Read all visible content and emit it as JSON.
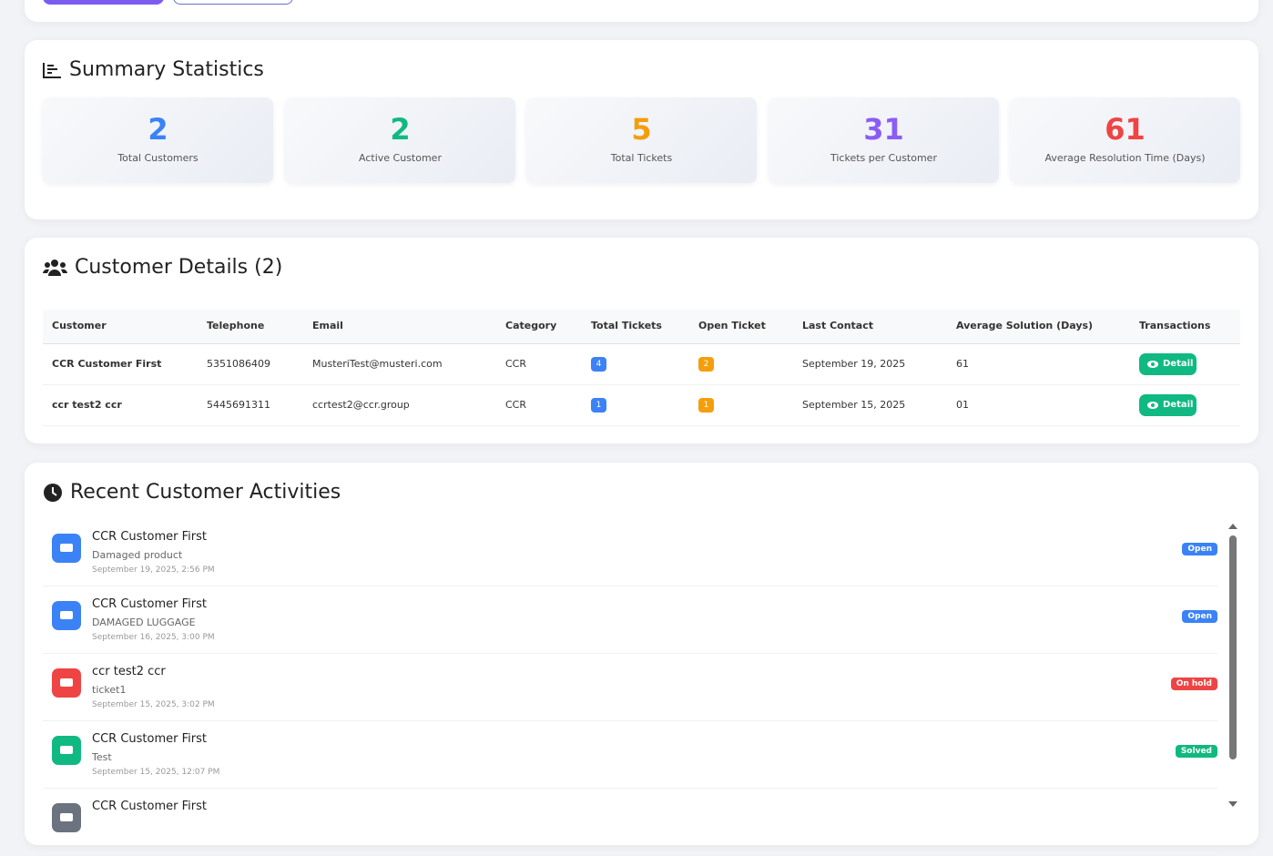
{
  "summary": {
    "title": "Summary Statistics",
    "stats": [
      {
        "value": 2,
        "label": "Total Customers",
        "color": "#3b82f6"
      },
      {
        "value": 2,
        "label": "Active Customer",
        "color": "#10b981"
      },
      {
        "value": 5,
        "label": "Total Tickets",
        "color": "#f59e0b"
      },
      {
        "value": 31,
        "label": "Tickets per Customer",
        "color": "#8b5cf6"
      },
      {
        "value": 61,
        "label": "Average Resolution Time (Days)",
        "color": "#ef4444"
      }
    ]
  },
  "customers": {
    "title": "Customer Details (2)",
    "columns": [
      "Customer",
      "Telephone",
      "Email",
      "Category",
      "Total Tickets",
      "Open Ticket",
      "Last Contact",
      "Average Solution (Days)",
      "Transactions"
    ],
    "rows": [
      [
        "CCR Customer First",
        "5351086409",
        "MusteriTest@musteri.com",
        "CCR",
        4,
        2,
        "September 19, 2025",
        "61",
        "Detail"
      ],
      [
        "ccr test2 ccr",
        "5445691311",
        "ccrtest2@ccr.group",
        "CCR",
        1,
        1,
        "September 15, 2025",
        "01",
        "Detail"
      ]
    ]
  },
  "activities": {
    "title": "Recent Customer Activities",
    "items": [
      {
        "name": "CCR Customer First",
        "subject": "Damaged product",
        "date": "September 19, 2025, 2:56 PM",
        "status": "Open",
        "color": "#3b82f6"
      },
      {
        "name": "CCR Customer First",
        "subject": "DAMAGED LUGGAGE",
        "date": "September 16, 2025, 3:00 PM",
        "status": "Open",
        "color": "#3b82f6"
      },
      {
        "name": "ccr test2 ccr",
        "subject": "ticket1",
        "date": "September 15, 2025, 3:02 PM",
        "status": "On hold",
        "color": "#ef4444"
      },
      {
        "name": "CCR Customer First",
        "subject": "Test",
        "date": "September 15, 2025, 12:07 PM",
        "status": "Solved",
        "color": "#10b981"
      },
      {
        "name": "CCR Customer First",
        "color": "#6b7280"
      }
    ]
  }
}
